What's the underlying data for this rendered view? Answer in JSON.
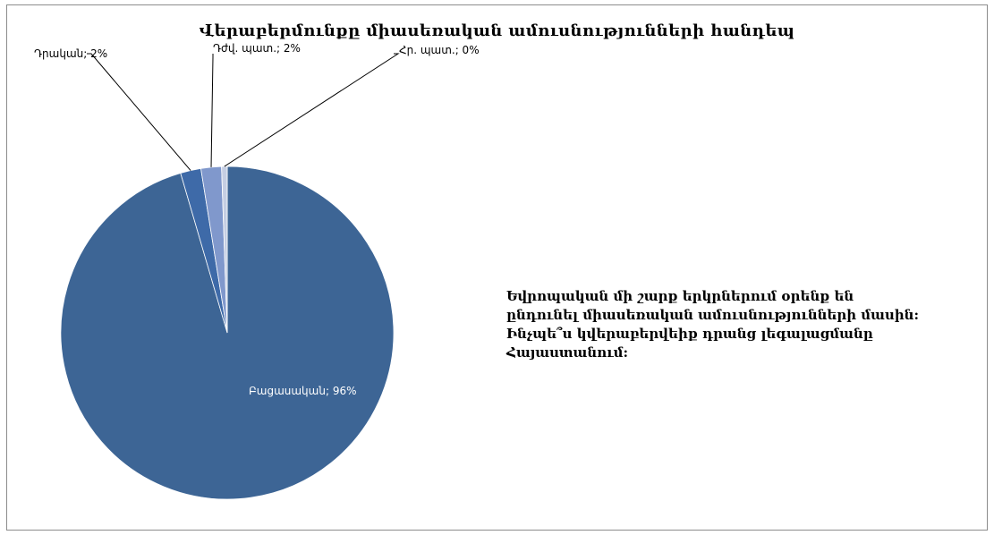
{
  "chart_data": {
    "type": "pie",
    "title": "Վերաբերմունքը միասեռական ամուսնությունների հանդեպ",
    "slices": [
      {
        "name": "Բացասական",
        "value": 96,
        "label": "Բացասական; 96%",
        "color": "#3d6595"
      },
      {
        "name": "Դրական",
        "value": 2,
        "label": "Դրական; 2%",
        "color": "#3e6aa8"
      },
      {
        "name": "Դժվ. պատ.",
        "value": 2,
        "label": "Դժվ. պատ.; 2%",
        "color": "#8098cc"
      },
      {
        "name": "Հր. պատ.",
        "value": 0,
        "label": "Հր. պատ.; 0%",
        "color": "#c5cee3"
      }
    ]
  },
  "note": "Եվրոպական մի շարք երկրներում օրենք են ընդունել միասեռական ամուսնությունների մասին: Ինչպե՞ս կվերաբերվեիք դրանց լեգալացմանը Հայաստանում:"
}
